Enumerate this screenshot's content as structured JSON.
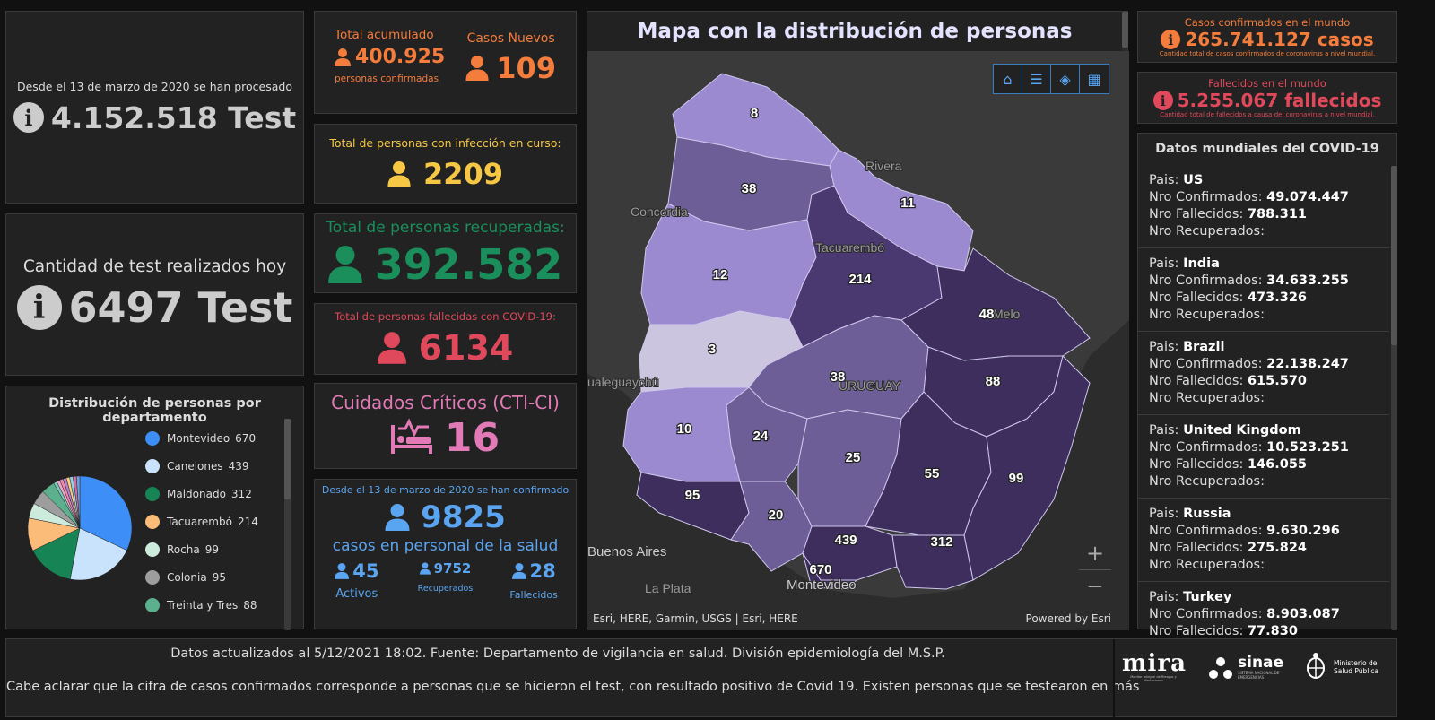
{
  "tests_total": {
    "caption": "Desde el 13 de marzo de 2020 se han procesado",
    "value": "4.152.518 Test",
    "icon": "info-icon"
  },
  "tests_today": {
    "caption": "Cantidad de test realizados hoy",
    "value": "6497 Test",
    "icon": "info-icon"
  },
  "distribution": {
    "title": "Distribución de personas por departamento",
    "items": [
      {
        "name": "Montevideo",
        "value": "670",
        "color": "#3d8ef7"
      },
      {
        "name": "Canelones",
        "value": "439",
        "color": "#c8e3fb"
      },
      {
        "name": "Maldonado",
        "value": "312",
        "color": "#168455"
      },
      {
        "name": "Tacuarembó",
        "value": "214",
        "color": "#fbbb79"
      },
      {
        "name": "Rocha",
        "value": "99",
        "color": "#cdebdc"
      },
      {
        "name": "Colonia",
        "value": "95",
        "color": "#9d9d9d"
      },
      {
        "name": "Treinta y Tres",
        "value": "88",
        "color": "#5cb08d"
      }
    ]
  },
  "accumulated": {
    "label": "Total acumulado",
    "value": "400.925",
    "sub": "personas confirmadas"
  },
  "new_cases": {
    "label": "Casos Nuevos",
    "value": "109"
  },
  "active": {
    "label": "Total de personas con infección en curso:",
    "value": "2209"
  },
  "recovered": {
    "label": "Total de personas recuperadas:",
    "value": "392.582"
  },
  "deceased": {
    "label": "Total de personas fallecidas con COVID-19:",
    "value": "6134"
  },
  "critical": {
    "label": "Cuidados Críticos (CTI-CI)",
    "value": "16"
  },
  "health_staff": {
    "caption": "Desde el 13 de marzo de 2020 se han confirmado",
    "value": "9825",
    "sub": "casos en personal de la salud",
    "active_value": "45",
    "active_label": "Activos",
    "recovered_value": "9752",
    "recovered_label": "Recuperados",
    "deceased_value": "28",
    "deceased_label": "Fallecidos"
  },
  "map": {
    "title": "Mapa con la distribución de personas",
    "attribution": "Esri, HERE, Garmin, USGS | Esri, HERE",
    "powered": "Powered by Esri",
    "zoom_in": "+",
    "zoom_out": "—",
    "places": [
      "Rivera",
      "Concordia",
      "Tacuarembó",
      "Melo",
      "URUGUAY",
      "ualeguaychú",
      "Buenos Aires",
      "La Plata",
      "Montevideo"
    ],
    "counts": [
      "8",
      "38",
      "11",
      "12",
      "214",
      "48",
      "3",
      "38",
      "88",
      "10",
      "24",
      "25",
      "55",
      "99",
      "95",
      "20",
      "439",
      "312",
      "670"
    ]
  },
  "world_confirmed": {
    "label": "Casos confirmados en el mundo",
    "value": "265.741.127 casos",
    "sub": "Cantidad total de casos confirmados de coronavirus a nivel mundial."
  },
  "world_deaths": {
    "label": "Fallecidos en el mundo",
    "value": "5.255.067 fallecidos",
    "sub": "Cantidad total de fallecidos a causa del coronavirus a nivel mundial."
  },
  "world_data": {
    "title": "Datos mundiales del COVID-19",
    "pais_label": "Pais:",
    "conf_label": "Nro Confirmados:",
    "fall_label": "Nro Fallecidos:",
    "rec_label": "Nro Recuperados:",
    "countries": [
      {
        "name": "US",
        "confirmed": "49.074.447",
        "deaths": "788.311"
      },
      {
        "name": "India",
        "confirmed": "34.633.255",
        "deaths": "473.326"
      },
      {
        "name": "Brazil",
        "confirmed": "22.138.247",
        "deaths": "615.570"
      },
      {
        "name": "United Kingdom",
        "confirmed": "10.523.251",
        "deaths": "146.055"
      },
      {
        "name": "Russia",
        "confirmed": "9.630.296",
        "deaths": "275.824"
      },
      {
        "name": "Turkey",
        "confirmed": "8.903.087",
        "deaths": "77.830"
      }
    ]
  },
  "footer": {
    "line1": "Datos actualizados al 5/12/2021 18:02. Fuente: Departamento de vigilancia en salud. División epidemiología del M.S.P.",
    "line2": "Cabe aclarar que la cifra de casos confirmados corresponde a personas que se hicieron el test, con resultado positivo de Covid 19. Existen personas que se testearon en más",
    "logo_mira": "mira",
    "logo_mira_sub": "Monitor Integral de Riesgos y Afectaciones",
    "logo_sinae": "sinae",
    "logo_sinae_sub": "SISTEMA NACIONAL DE EMERGENCIAS",
    "logo_msp": "Ministerio de Salud Pública"
  }
}
